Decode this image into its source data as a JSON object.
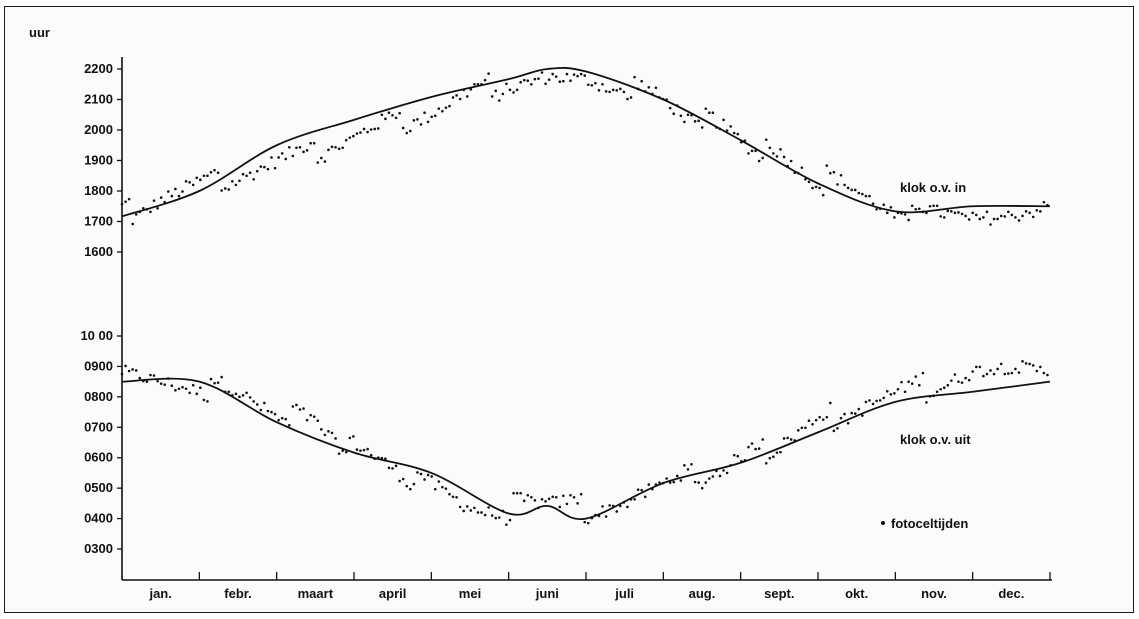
{
  "chart_data": {
    "type": "line",
    "title": "",
    "ylabel": "uur",
    "xlabel": "",
    "ylim": [
      200,
      2250
    ],
    "broken_y_axis": true,
    "upper_panel_range": [
      "1600",
      "2200"
    ],
    "lower_panel_range": [
      "0300",
      "1000"
    ],
    "categories": [
      "jan.",
      "febr.",
      "maart",
      "april",
      "mei",
      "juni",
      "juli",
      "aug.",
      "sept.",
      "okt.",
      "nov.",
      "dec."
    ],
    "yticks_upper": [
      "2200",
      "2100",
      "2000",
      "1900",
      "1800",
      "1700",
      "1600"
    ],
    "yticks_lower": [
      "1000",
      "0900",
      "0800",
      "0700",
      "0600",
      "0500",
      "0400",
      "0300"
    ],
    "yticks_upper_display": [
      "2200",
      "2100",
      "2000",
      "1900",
      "1800",
      "1700",
      "1600"
    ],
    "yticks_lower_display": [
      "10 00",
      "0900",
      "0800",
      "0700",
      "0600",
      "0500",
      "0400",
      "0300"
    ],
    "series": [
      {
        "name": "klok o.v. in",
        "style": "line",
        "x_month": [
          0,
          1,
          2,
          3,
          4,
          5,
          5.5,
          6,
          7,
          8,
          9,
          10,
          11,
          12
        ],
        "y_hhmm": [
          1710,
          1800,
          1890,
          1980,
          2065,
          2140,
          2160,
          2155,
          2060,
          1940,
          1815,
          1720,
          1690,
          1730
        ]
      },
      {
        "name": "klok o.v. uit",
        "style": "line",
        "x_month": [
          0,
          1,
          2,
          3,
          4,
          5,
          5.5,
          6,
          7,
          8,
          9,
          10,
          11,
          12
        ],
        "y_hhmm": [
          830,
          790,
          710,
          610,
          490,
          410,
          385,
          400,
          470,
          550,
          650,
          750,
          810,
          830
        ]
      },
      {
        "name": "fotoceltijden",
        "style": "dots",
        "note": "scattered daily photocell switching times around both curves (approx.)",
        "x_month": [
          0,
          0.5,
          1,
          1.5,
          2,
          2.5,
          3,
          3.5,
          4,
          4.5,
          5,
          5.5,
          6,
          6.5,
          7,
          7.5,
          8,
          8.5,
          9,
          9.5,
          10,
          10.5,
          11,
          11.5,
          12
        ],
        "y_in_hhmm": [
          1690,
          1740,
          1780,
          1820,
          1860,
          1900,
          1945,
          1990,
          2030,
          2080,
          2120,
          2145,
          2140,
          2110,
          2060,
          2000,
          1940,
          1875,
          1810,
          1760,
          1710,
          1680,
          1665,
          1670,
          1690
        ],
        "y_out_hhmm": [
          850,
          830,
          810,
          770,
          720,
          670,
          590,
          540,
          470,
          420,
          400,
          390,
          400,
          430,
          470,
          510,
          560,
          620,
          680,
          730,
          770,
          810,
          850,
          860,
          850
        ]
      }
    ],
    "annotations": [
      {
        "text": "klok o.v. in"
      },
      {
        "text": "klok o.v. uit"
      },
      {
        "text": "fotoceltijden",
        "marker": "•"
      }
    ],
    "grid": false,
    "colors": {
      "ink": "#111111",
      "background": "#fbfbfb"
    }
  }
}
